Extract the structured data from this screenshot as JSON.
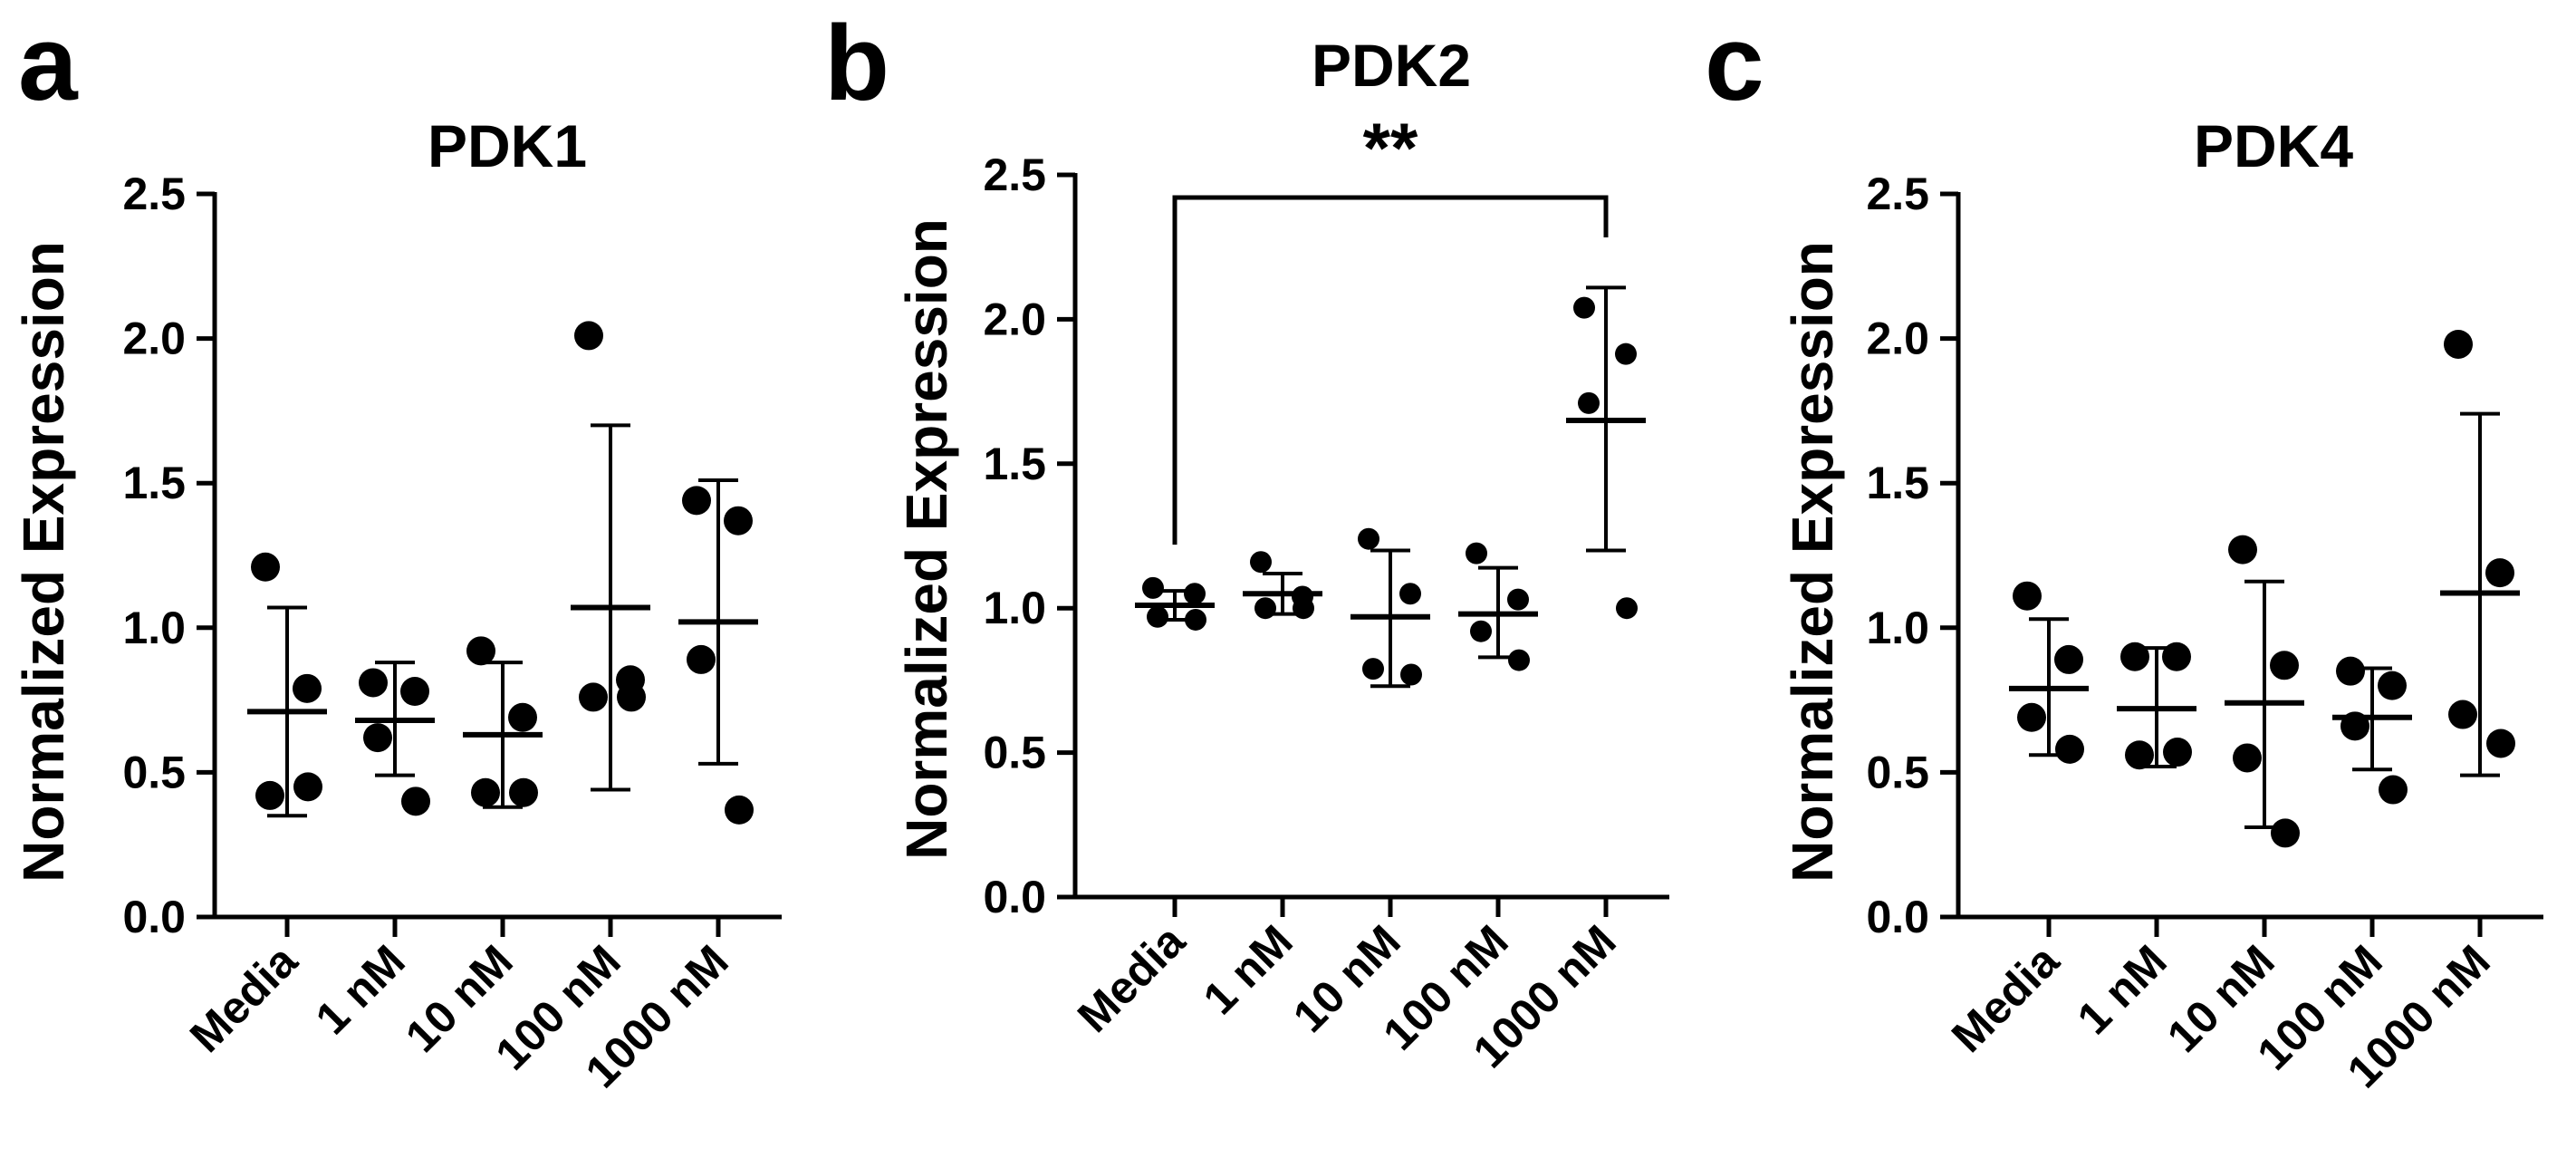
{
  "chart_data": [
    {
      "panel_letter": "a",
      "type": "scatter",
      "title": "PDK1",
      "ylabel": "Normalized  Expression",
      "xlabel": "",
      "categories": [
        "Media",
        "1 nM",
        "10 nM",
        "100 nM",
        "1000 nM"
      ],
      "ylim": [
        0,
        2.5
      ],
      "yticks": [
        "0.0",
        "0.5",
        "1.0",
        "1.5",
        "2.0",
        "2.5"
      ],
      "groups": [
        {
          "points": [
            1.21,
            0.79,
            0.42,
            0.45
          ],
          "mean": 0.71,
          "sd_low": 0.35,
          "sd_high": 1.07
        },
        {
          "points": [
            0.81,
            0.78,
            0.62,
            0.4
          ],
          "mean": 0.68,
          "sd_low": 0.49,
          "sd_high": 0.88
        },
        {
          "points": [
            0.92,
            0.69,
            0.43,
            0.43
          ],
          "mean": 0.63,
          "sd_low": 0.38,
          "sd_high": 0.88
        },
        {
          "points": [
            2.01,
            0.82,
            0.76,
            0.76
          ],
          "mean": 1.07,
          "sd_low": 0.44,
          "sd_high": 1.7
        },
        {
          "points": [
            1.44,
            1.37,
            0.89,
            0.37
          ],
          "mean": 1.02,
          "sd_low": 0.53,
          "sd_high": 1.51
        }
      ],
      "significance": []
    },
    {
      "panel_letter": "b",
      "type": "scatter",
      "title": "PDK2",
      "ylabel": "Normalized  Expression",
      "xlabel": "",
      "categories": [
        "Media",
        "1 nM",
        "10 nM",
        "100 nM",
        "1000 nM"
      ],
      "ylim": [
        0,
        2.5
      ],
      "yticks": [
        "0.0",
        "0.5",
        "1.0",
        "1.5",
        "2.0",
        "2.5"
      ],
      "groups": [
        {
          "points": [
            1.07,
            1.05,
            0.97,
            0.96
          ],
          "mean": 1.01,
          "sd_low": 0.96,
          "sd_high": 1.06
        },
        {
          "points": [
            1.16,
            1.04,
            1.0,
            1.0
          ],
          "mean": 1.05,
          "sd_low": 0.98,
          "sd_high": 1.12
        },
        {
          "points": [
            1.24,
            1.05,
            0.79,
            0.77
          ],
          "mean": 0.97,
          "sd_low": 0.73,
          "sd_high": 1.2
        },
        {
          "points": [
            1.19,
            1.03,
            0.92,
            0.82
          ],
          "mean": 0.98,
          "sd_low": 0.83,
          "sd_high": 1.14
        },
        {
          "points": [
            2.04,
            1.88,
            1.71,
            1.0
          ],
          "mean": 1.65,
          "sd_low": 1.2,
          "sd_high": 2.11
        }
      ],
      "significance": [
        {
          "from": 0,
          "to": 4,
          "label": "**"
        }
      ]
    },
    {
      "panel_letter": "c",
      "type": "scatter",
      "title": "PDK4",
      "ylabel": "Normalized  Expression",
      "xlabel": "",
      "categories": [
        "Media",
        "1 nM",
        "10 nM",
        "100 nM",
        "1000 nM"
      ],
      "ylim": [
        0,
        2.5
      ],
      "yticks": [
        "0.0",
        "0.5",
        "1.0",
        "1.5",
        "2.0",
        "2.5"
      ],
      "groups": [
        {
          "points": [
            1.11,
            0.89,
            0.69,
            0.58
          ],
          "mean": 0.79,
          "sd_low": 0.56,
          "sd_high": 1.03
        },
        {
          "points": [
            0.9,
            0.9,
            0.56,
            0.57
          ],
          "mean": 0.72,
          "sd_low": 0.52,
          "sd_high": 0.93
        },
        {
          "points": [
            1.27,
            0.87,
            0.55,
            0.29
          ],
          "mean": 0.74,
          "sd_low": 0.31,
          "sd_high": 1.16
        },
        {
          "points": [
            0.85,
            0.8,
            0.66,
            0.44
          ],
          "mean": 0.69,
          "sd_low": 0.51,
          "sd_high": 0.86
        },
        {
          "points": [
            1.98,
            1.19,
            0.7,
            0.6
          ],
          "mean": 1.12,
          "sd_low": 0.49,
          "sd_high": 1.74
        }
      ],
      "significance": []
    }
  ]
}
